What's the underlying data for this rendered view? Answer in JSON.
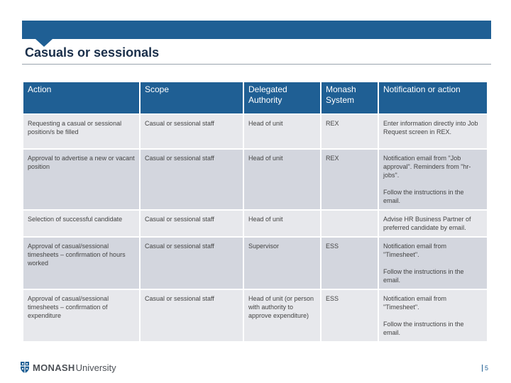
{
  "title": "Casuals or sessionals",
  "table": {
    "headers": [
      "Action",
      "Scope",
      "Delegated Authority",
      "Monash System",
      "Notification or action"
    ],
    "rows": [
      {
        "action": "Requesting a casual or sessional position/s be filled",
        "scope": "Casual or sessional staff",
        "authority": "Head of unit",
        "system": "REX",
        "notification": [
          "Enter information directly into Job Request screen in REX."
        ]
      },
      {
        "action": "Approval to advertise a new or vacant position",
        "scope": "Casual or sessional staff",
        "authority": "Head of unit",
        "system": "REX",
        "notification": [
          "Notification email from \"Job approval\". Reminders from \"hr-jobs\".",
          "Follow the instructions in the email."
        ]
      },
      {
        "action": "Selection of successful candidate",
        "scope": "Casual or sessional staff",
        "authority": "Head of unit",
        "system": "",
        "notification": [
          "Advise HR Business Partner of preferred candidate by email."
        ]
      },
      {
        "action": "Approval of casual/sessional timesheets – confirmation of hours worked",
        "scope": "Casual or sessional staff",
        "authority": "Supervisor",
        "system": "ESS",
        "notification": [
          "Notification email from \"Timesheet\".",
          "Follow the instructions in the email."
        ]
      },
      {
        "action": "Approval of casual/sessional timesheets – confirmation of expenditure",
        "scope": "Casual or sessional staff",
        "authority": "Head of unit (or person with authority to approve expenditure)",
        "system": "ESS",
        "notification": [
          "Notification email from \"Timesheet\".",
          "Follow the instructions in the email."
        ]
      }
    ]
  },
  "footer": {
    "logo_monash": "MONASH",
    "logo_university": "University",
    "page_number": "5"
  },
  "colors": {
    "accent": "#1f5f94",
    "row_light": "#e7e8ec",
    "row_dark": "#d3d6de"
  }
}
